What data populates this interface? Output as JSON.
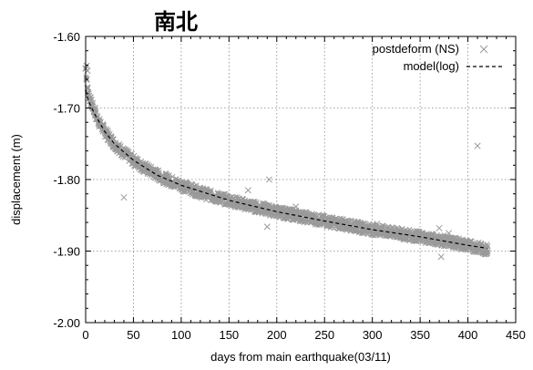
{
  "chart_data": {
    "type": "scatter",
    "title": "南北",
    "xlabel": "days from main earthquake(03/11)",
    "ylabel": "displacement (m)",
    "xlim": [
      0,
      450
    ],
    "ylim": [
      -2.0,
      -1.6
    ],
    "x_ticks": [
      "0",
      "50",
      "100",
      "150",
      "200",
      "250",
      "300",
      "350",
      "400",
      "450"
    ],
    "y_ticks": [
      "-1.60",
      "-1.70",
      "-1.80",
      "-1.90",
      "-2.00"
    ],
    "grid": true,
    "legend_position": "top-right",
    "colors": {
      "points": "#9a9a9a",
      "model": "#000000",
      "grid": "#888888"
    },
    "series": [
      {
        "name": "postdeform (NS)",
        "kind": "points",
        "marker": "x",
        "x": [
          0,
          1,
          2,
          3,
          5,
          8,
          10,
          15,
          20,
          30,
          40,
          50,
          60,
          70,
          80,
          100,
          120,
          140,
          150,
          170,
          190,
          200,
          220,
          250,
          280,
          300,
          320,
          350,
          380,
          400,
          410,
          420
        ],
        "y": [
          -1.645,
          -1.66,
          -1.672,
          -1.68,
          -1.69,
          -1.7,
          -1.708,
          -1.722,
          -1.733,
          -1.75,
          -1.763,
          -1.773,
          -1.782,
          -1.79,
          -1.797,
          -1.808,
          -1.818,
          -1.826,
          -1.829,
          -1.836,
          -1.842,
          -1.845,
          -1.85,
          -1.858,
          -1.865,
          -1.87,
          -1.874,
          -1.88,
          -1.887,
          -1.892,
          -1.895,
          -1.898
        ]
      },
      {
        "name": "",
        "kind": "points",
        "marker": "x",
        "x": [
          1,
          2,
          5,
          10,
          40,
          170,
          190,
          192,
          220,
          305,
          370,
          372,
          380,
          410
        ],
        "y": [
          -1.641,
          -1.648,
          -1.685,
          -1.7,
          -1.825,
          -1.815,
          -1.866,
          -1.8,
          -1.838,
          -1.862,
          -1.868,
          -1.908,
          -1.875,
          -1.753
        ]
      },
      {
        "name": "model(log)",
        "kind": "line",
        "style": "dashed",
        "x": [
          0,
          2,
          5,
          10,
          20,
          30,
          50,
          75,
          100,
          150,
          200,
          250,
          300,
          350,
          400,
          420
        ],
        "y": [
          -1.675,
          -1.686,
          -1.696,
          -1.71,
          -1.733,
          -1.75,
          -1.773,
          -1.794,
          -1.808,
          -1.829,
          -1.845,
          -1.858,
          -1.87,
          -1.88,
          -1.892,
          -1.896
        ]
      }
    ]
  }
}
